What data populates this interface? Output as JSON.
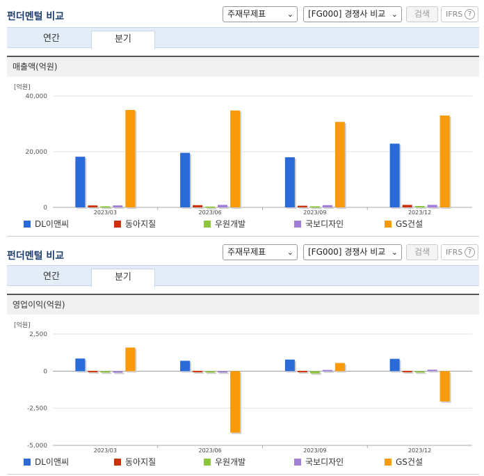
{
  "colors": {
    "dl": "#2a6bd8",
    "dongah": "#c8320c",
    "wonwoo": "#8cc63f",
    "kukbo": "#a27fd6",
    "gs": "#f89a0a"
  },
  "sections": [
    {
      "title": "펀더멘털 비교",
      "select_statement": "주재무제표",
      "select_compare": "[FG000] 경쟁사 비교",
      "search_label": "검색",
      "ifrs_label": "IFRS",
      "help_icon": "?",
      "tabs": [
        {
          "label": "연간"
        },
        {
          "label": "분기"
        }
      ],
      "active_tab": "분기",
      "chart_header": "매출액(억원)",
      "unit_label": "[억원]",
      "legend": [
        "DL이앤씨",
        "동아지질",
        "우원개발",
        "국보디자인",
        "GS건설"
      ]
    },
    {
      "title": "펀더멘털 비교",
      "select_statement": "주재무제표",
      "select_compare": "[FG000] 경쟁사 비교",
      "search_label": "검색",
      "ifrs_label": "IFRS",
      "help_icon": "?",
      "tabs": [
        {
          "label": "연간"
        },
        {
          "label": "분기"
        }
      ],
      "active_tab": "분기",
      "chart_header": "영업이익(억원)",
      "unit_label": "[억원]",
      "legend": [
        "DL이앤씨",
        "동아지질",
        "우원개발",
        "국보디자인",
        "GS건설"
      ]
    }
  ],
  "chart_data": [
    {
      "type": "bar",
      "title": "매출액(억원)",
      "ylabel": "[억원]",
      "categories": [
        "2023/03",
        "2023/06",
        "2023/09",
        "2023/12"
      ],
      "ylim": [
        0,
        40000
      ],
      "yticks": [
        "40,000",
        "20,000",
        "0"
      ],
      "ytick_values": [
        40000,
        20000,
        0
      ],
      "series": [
        {
          "name": "DL이앤씨",
          "values": [
            18200,
            19600,
            18000,
            22900
          ]
        },
        {
          "name": "동아지질",
          "values": [
            700,
            800,
            600,
            900
          ]
        },
        {
          "name": "우원개발",
          "values": [
            400,
            300,
            400,
            500
          ]
        },
        {
          "name": "국보디자인",
          "values": [
            700,
            900,
            800,
            900
          ]
        },
        {
          "name": "GS건설",
          "values": [
            35000,
            34800,
            30700,
            33000
          ]
        }
      ]
    },
    {
      "type": "bar",
      "title": "영업이익(억원)",
      "ylabel": "[억원]",
      "categories": [
        "2023/03",
        "2023/06",
        "2023/09",
        "2023/12"
      ],
      "ylim": [
        -5000,
        2500
      ],
      "yticks": [
        "2,500",
        "0",
        "-2,500",
        "-5,000"
      ],
      "ytick_values": [
        2500,
        0,
        -2500,
        -5000
      ],
      "series": [
        {
          "name": "DL이앤씨",
          "values": [
            850,
            700,
            780,
            830
          ]
        },
        {
          "name": "동아지질",
          "values": [
            20,
            20,
            20,
            20
          ]
        },
        {
          "name": "우원개발",
          "values": [
            -30,
            -20,
            -150,
            -50
          ]
        },
        {
          "name": "국보디자인",
          "values": [
            -100,
            -80,
            80,
            100
          ]
        },
        {
          "name": "GS건설",
          "values": [
            1590,
            -4140,
            550,
            -2040
          ]
        }
      ]
    }
  ]
}
